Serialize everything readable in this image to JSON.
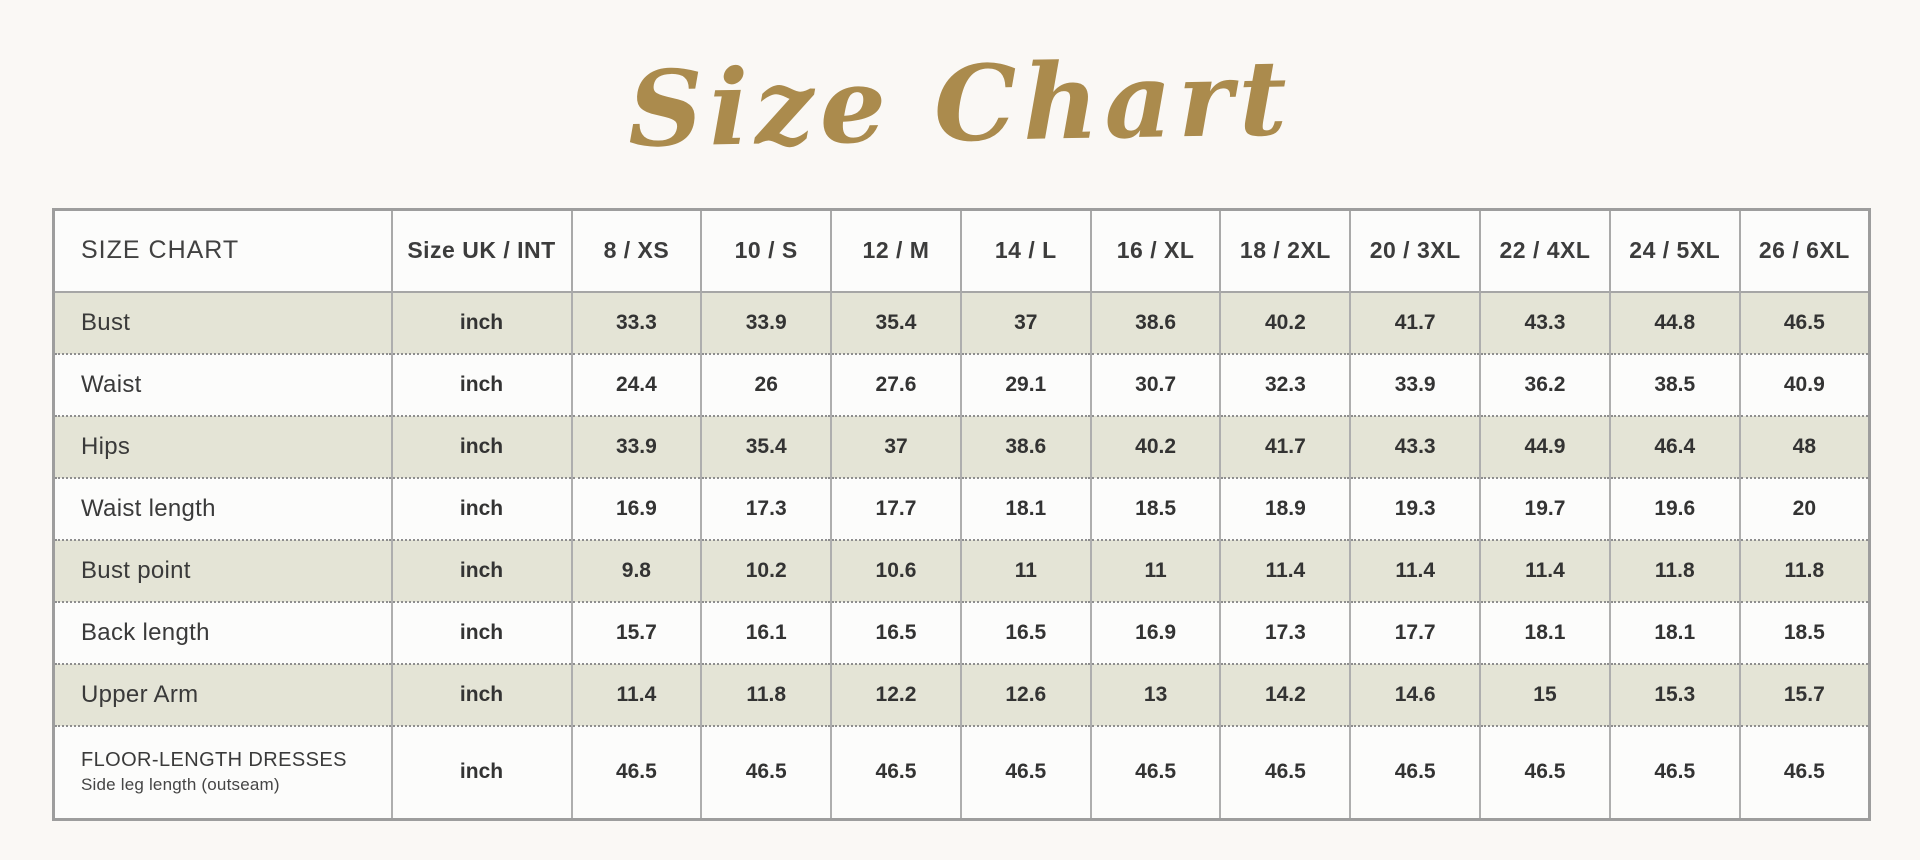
{
  "page": {
    "background": "#faf8f5",
    "accent_gold": "#ab8b4d",
    "stripe_color": "#e4e4d6",
    "border_solid_color": "#a6a6a6",
    "border_dotted_color": "#8e8e8e",
    "text_color": "#3a3a3a"
  },
  "chart_data": {
    "type": "table",
    "title": "Size Chart",
    "corner_header": "SIZE CHART",
    "unit_header": "Size UK / INT",
    "size_headers": [
      "8 / XS",
      "10 / S",
      "12 / M",
      "14 / L",
      "16 / XL",
      "18 / 2XL",
      "20 / 3XL",
      "22 / 4XL",
      "24 / 5XL",
      "26 / 6XL"
    ],
    "unit_label": "inch",
    "rows": [
      {
        "label": "Bust",
        "unit": "inch",
        "values": [
          33.3,
          33.9,
          35.4,
          37,
          38.6,
          40.2,
          41.7,
          43.3,
          44.8,
          46.5
        ]
      },
      {
        "label": "Waist",
        "unit": "inch",
        "values": [
          24.4,
          26,
          27.6,
          29.1,
          30.7,
          32.3,
          33.9,
          36.2,
          38.5,
          40.9
        ]
      },
      {
        "label": "Hips",
        "unit": "inch",
        "values": [
          33.9,
          35.4,
          37,
          38.6,
          40.2,
          41.7,
          43.3,
          44.9,
          46.4,
          48
        ]
      },
      {
        "label": "Waist length",
        "unit": "inch",
        "values": [
          16.9,
          17.3,
          17.7,
          18.1,
          18.5,
          18.9,
          19.3,
          19.7,
          19.6,
          20
        ]
      },
      {
        "label": "Bust point",
        "unit": "inch",
        "values": [
          9.8,
          10.2,
          10.6,
          11,
          11,
          11.4,
          11.4,
          11.4,
          11.8,
          11.8
        ]
      },
      {
        "label": "Back length",
        "unit": "inch",
        "values": [
          15.7,
          16.1,
          16.5,
          16.5,
          16.9,
          17.3,
          17.7,
          18.1,
          18.1,
          18.5
        ]
      },
      {
        "label": "Upper Arm",
        "unit": "inch",
        "values": [
          11.4,
          11.8,
          12.2,
          12.6,
          13,
          14.2,
          14.6,
          15,
          15.3,
          15.7
        ]
      },
      {
        "label": "FLOOR-LENGTH DRESSES",
        "sublabel": "Side leg length (outseam)",
        "unit": "inch",
        "values": [
          46.5,
          46.5,
          46.5,
          46.5,
          46.5,
          46.5,
          46.5,
          46.5,
          46.5,
          46.5
        ]
      }
    ],
    "layout": {
      "stripe_pattern": "odd data rows shaded (Bust, Hips, Bust point, Upper Arm)",
      "row_separators": "dotted",
      "column_separators": "solid"
    }
  }
}
